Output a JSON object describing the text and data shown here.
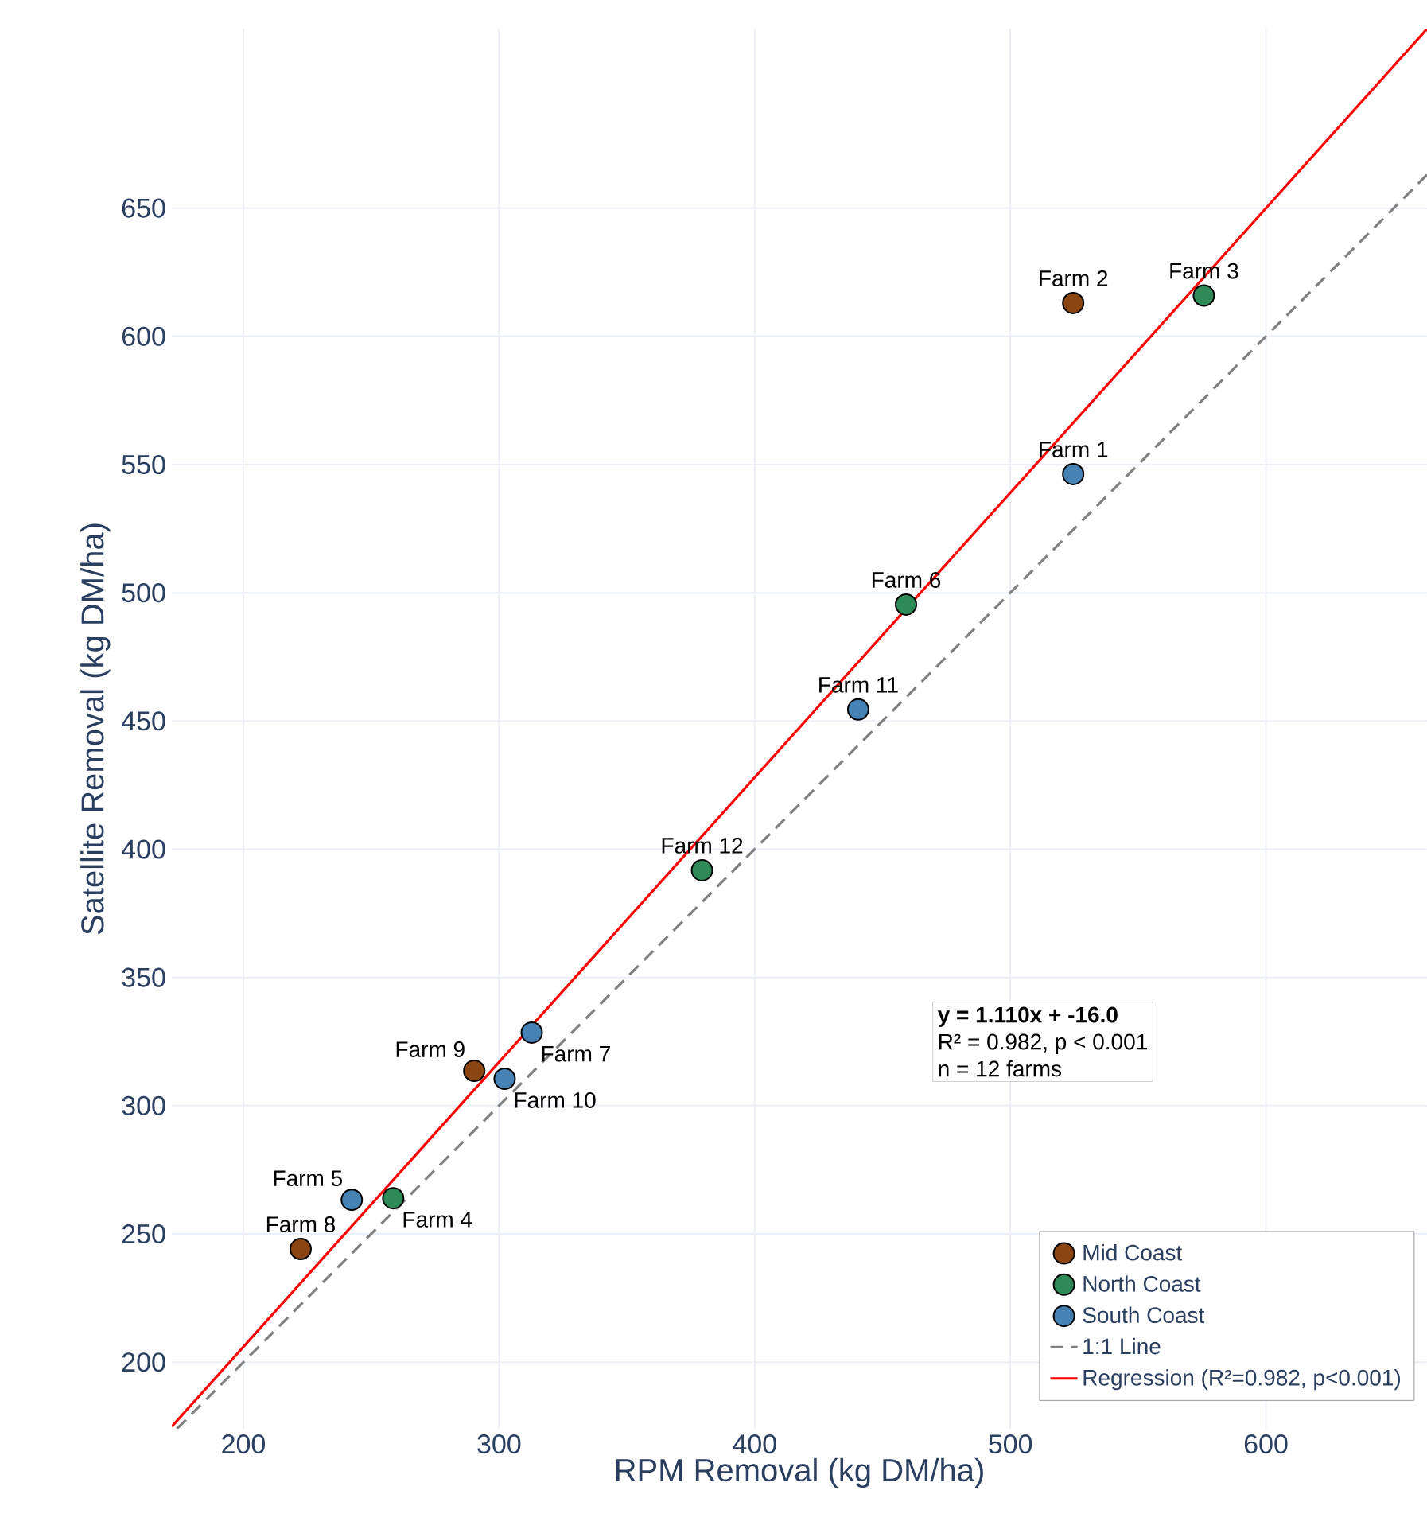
{
  "chart_data": {
    "type": "scatter",
    "xlabel": "RPM Removal (kg DM/ha)",
    "ylabel": "Satellite Removal (kg DM/ha)",
    "xlim": [
      172,
      663
    ],
    "ylim": [
      174,
      720
    ],
    "xticks": [
      200,
      300,
      400,
      500,
      600
    ],
    "yticks": [
      200,
      250,
      300,
      350,
      400,
      450,
      500,
      550,
      600,
      650
    ],
    "grid": true,
    "legend": "bottom right",
    "marker": "circle",
    "series": [
      {
        "name": "Mid Coast",
        "color": "#8b4513",
        "x": [
          524.6,
          290.3,
          222.4
        ],
        "values": [
          613,
          313.6,
          244.1
        ]
      },
      {
        "name": "North Coast",
        "color": "#2e8b57",
        "x": [
          575.7,
          459.2,
          379.4,
          258.6
        ],
        "values": [
          615.9,
          495.4,
          391.8,
          263.9
        ]
      },
      {
        "name": "South Coast",
        "color": "#4682b4",
        "x": [
          524.6,
          440.5,
          312.8,
          302.2,
          242.4
        ],
        "values": [
          546.3,
          454.5,
          328.5,
          310.5,
          263.3
        ]
      },
      {
        "name": "1:1 Line",
        "type": "line",
        "line_style": "dashed",
        "marker": "none",
        "color": "#808080",
        "x": [
          174,
          663
        ],
        "values": [
          174,
          663
        ]
      },
      {
        "name": "Regression (R²=0.982, p<0.001)",
        "type": "line",
        "line_style": "solid",
        "marker": "none",
        "color": "#ff0000",
        "x": [
          172,
          663
        ],
        "values": [
          174.9,
          719.9
        ]
      }
    ],
    "annotations": [
      {
        "text": "Farm 2",
        "x": 524.6,
        "y": 613
      },
      {
        "text": "Farm 9",
        "x": 290.3,
        "y": 313.6
      },
      {
        "text": "Farm 8",
        "x": 222.4,
        "y": 244.1
      },
      {
        "text": "Farm 3",
        "x": 575.7,
        "y": 615.9
      },
      {
        "text": "Farm 6",
        "x": 459.2,
        "y": 495.4
      },
      {
        "text": "Farm 12",
        "x": 379.4,
        "y": 391.8
      },
      {
        "text": "Farm 4",
        "x": 258.6,
        "y": 263.9
      },
      {
        "text": "Farm 1",
        "x": 524.6,
        "y": 546.3
      },
      {
        "text": "Farm 11",
        "x": 440.5,
        "y": 454.5
      },
      {
        "text": "Farm 7",
        "x": 312.8,
        "y": 328.5
      },
      {
        "text": "Farm 10",
        "x": 302.2,
        "y": 310.5
      },
      {
        "text": "Farm 5",
        "x": 242.4,
        "y": 263.3
      },
      "y = 1.110x + -16.0",
      "R² = 0.982, p < 0.001",
      "n = 12 farms"
    ]
  }
}
